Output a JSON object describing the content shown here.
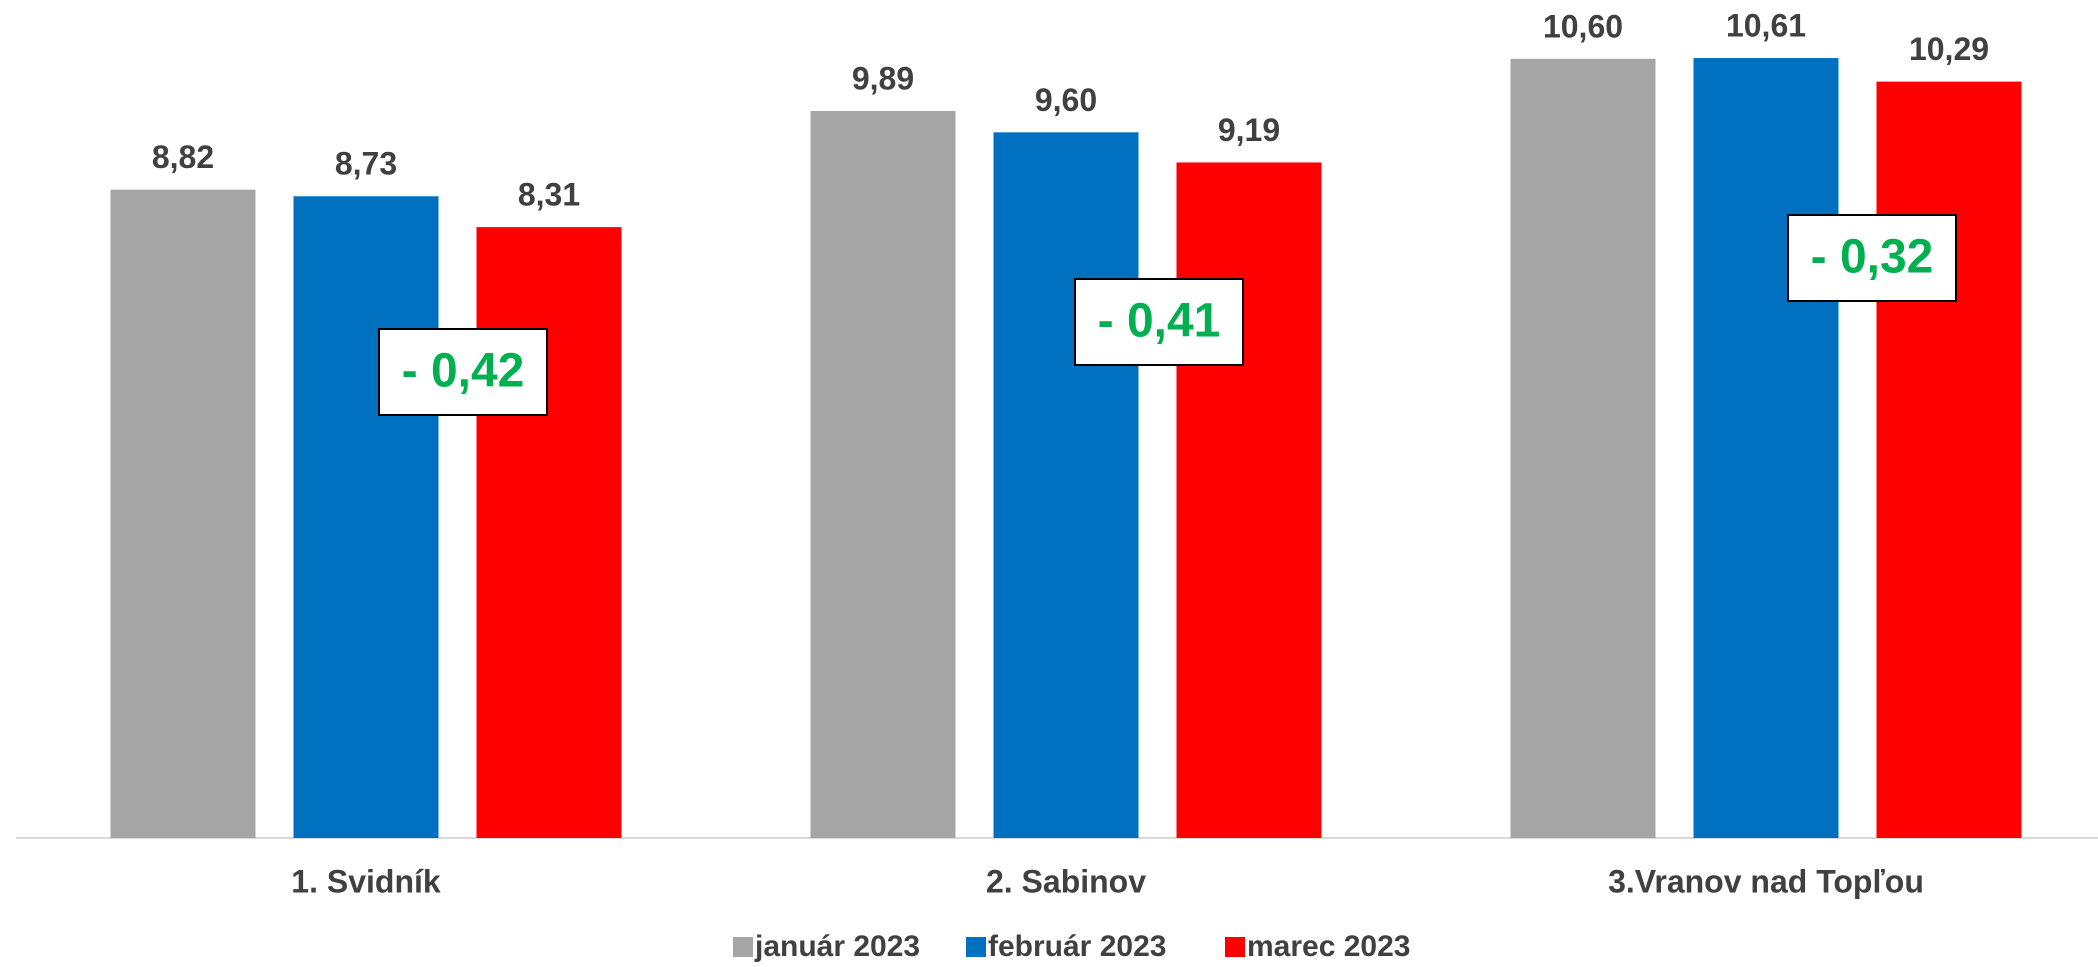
{
  "chart_data": {
    "type": "bar",
    "categories": [
      "1. Svidník",
      "2. Sabinov",
      "3.Vranov nad Topľou"
    ],
    "series": [
      {
        "name": "január 2023",
        "color": "#a5a5a5",
        "values": [
          8.82,
          9.89,
          10.6
        ],
        "value_labels": [
          "8,82",
          "9,89",
          "10,60"
        ]
      },
      {
        "name": "február 2023",
        "color": "#0070c0",
        "values": [
          8.73,
          9.6,
          10.61
        ],
        "value_labels": [
          "8,73",
          "9,60",
          "10,61"
        ]
      },
      {
        "name": "marec 2023",
        "color": "#ff0000",
        "values": [
          8.31,
          9.19,
          10.29
        ],
        "value_labels": [
          "8,31",
          "9,19",
          "10,29"
        ]
      }
    ],
    "annotations": [
      "- 0,42",
      "- 0,41",
      "- 0,32"
    ],
    "ylim": [
      0,
      11.4
    ],
    "grid": false,
    "legend": "bottom"
  }
}
